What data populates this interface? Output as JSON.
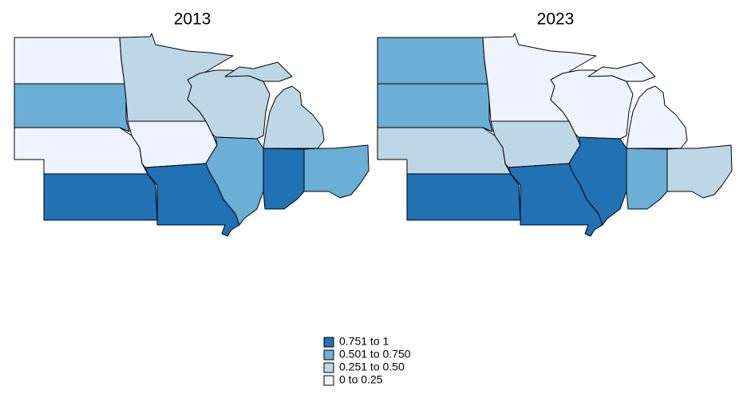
{
  "maps": [
    {
      "title": "2013",
      "regions": [
        3,
        1,
        3,
        0,
        2,
        3,
        0,
        2,
        1,
        2,
        0,
        1
      ]
    },
    {
      "title": "2023",
      "regions": [
        1,
        1,
        2,
        0,
        3,
        2,
        0,
        3,
        0,
        3,
        1,
        2
      ]
    }
  ],
  "legend": [
    {
      "label": "0.751 to 1",
      "color": "#2171b5"
    },
    {
      "label": "0.501 to 0.750",
      "color": "#6baed6"
    },
    {
      "label": "0.251 to 0.50",
      "color": "#bdd7e7"
    },
    {
      "label": "0 to 0.25",
      "color": "#eff3ff"
    }
  ]
}
